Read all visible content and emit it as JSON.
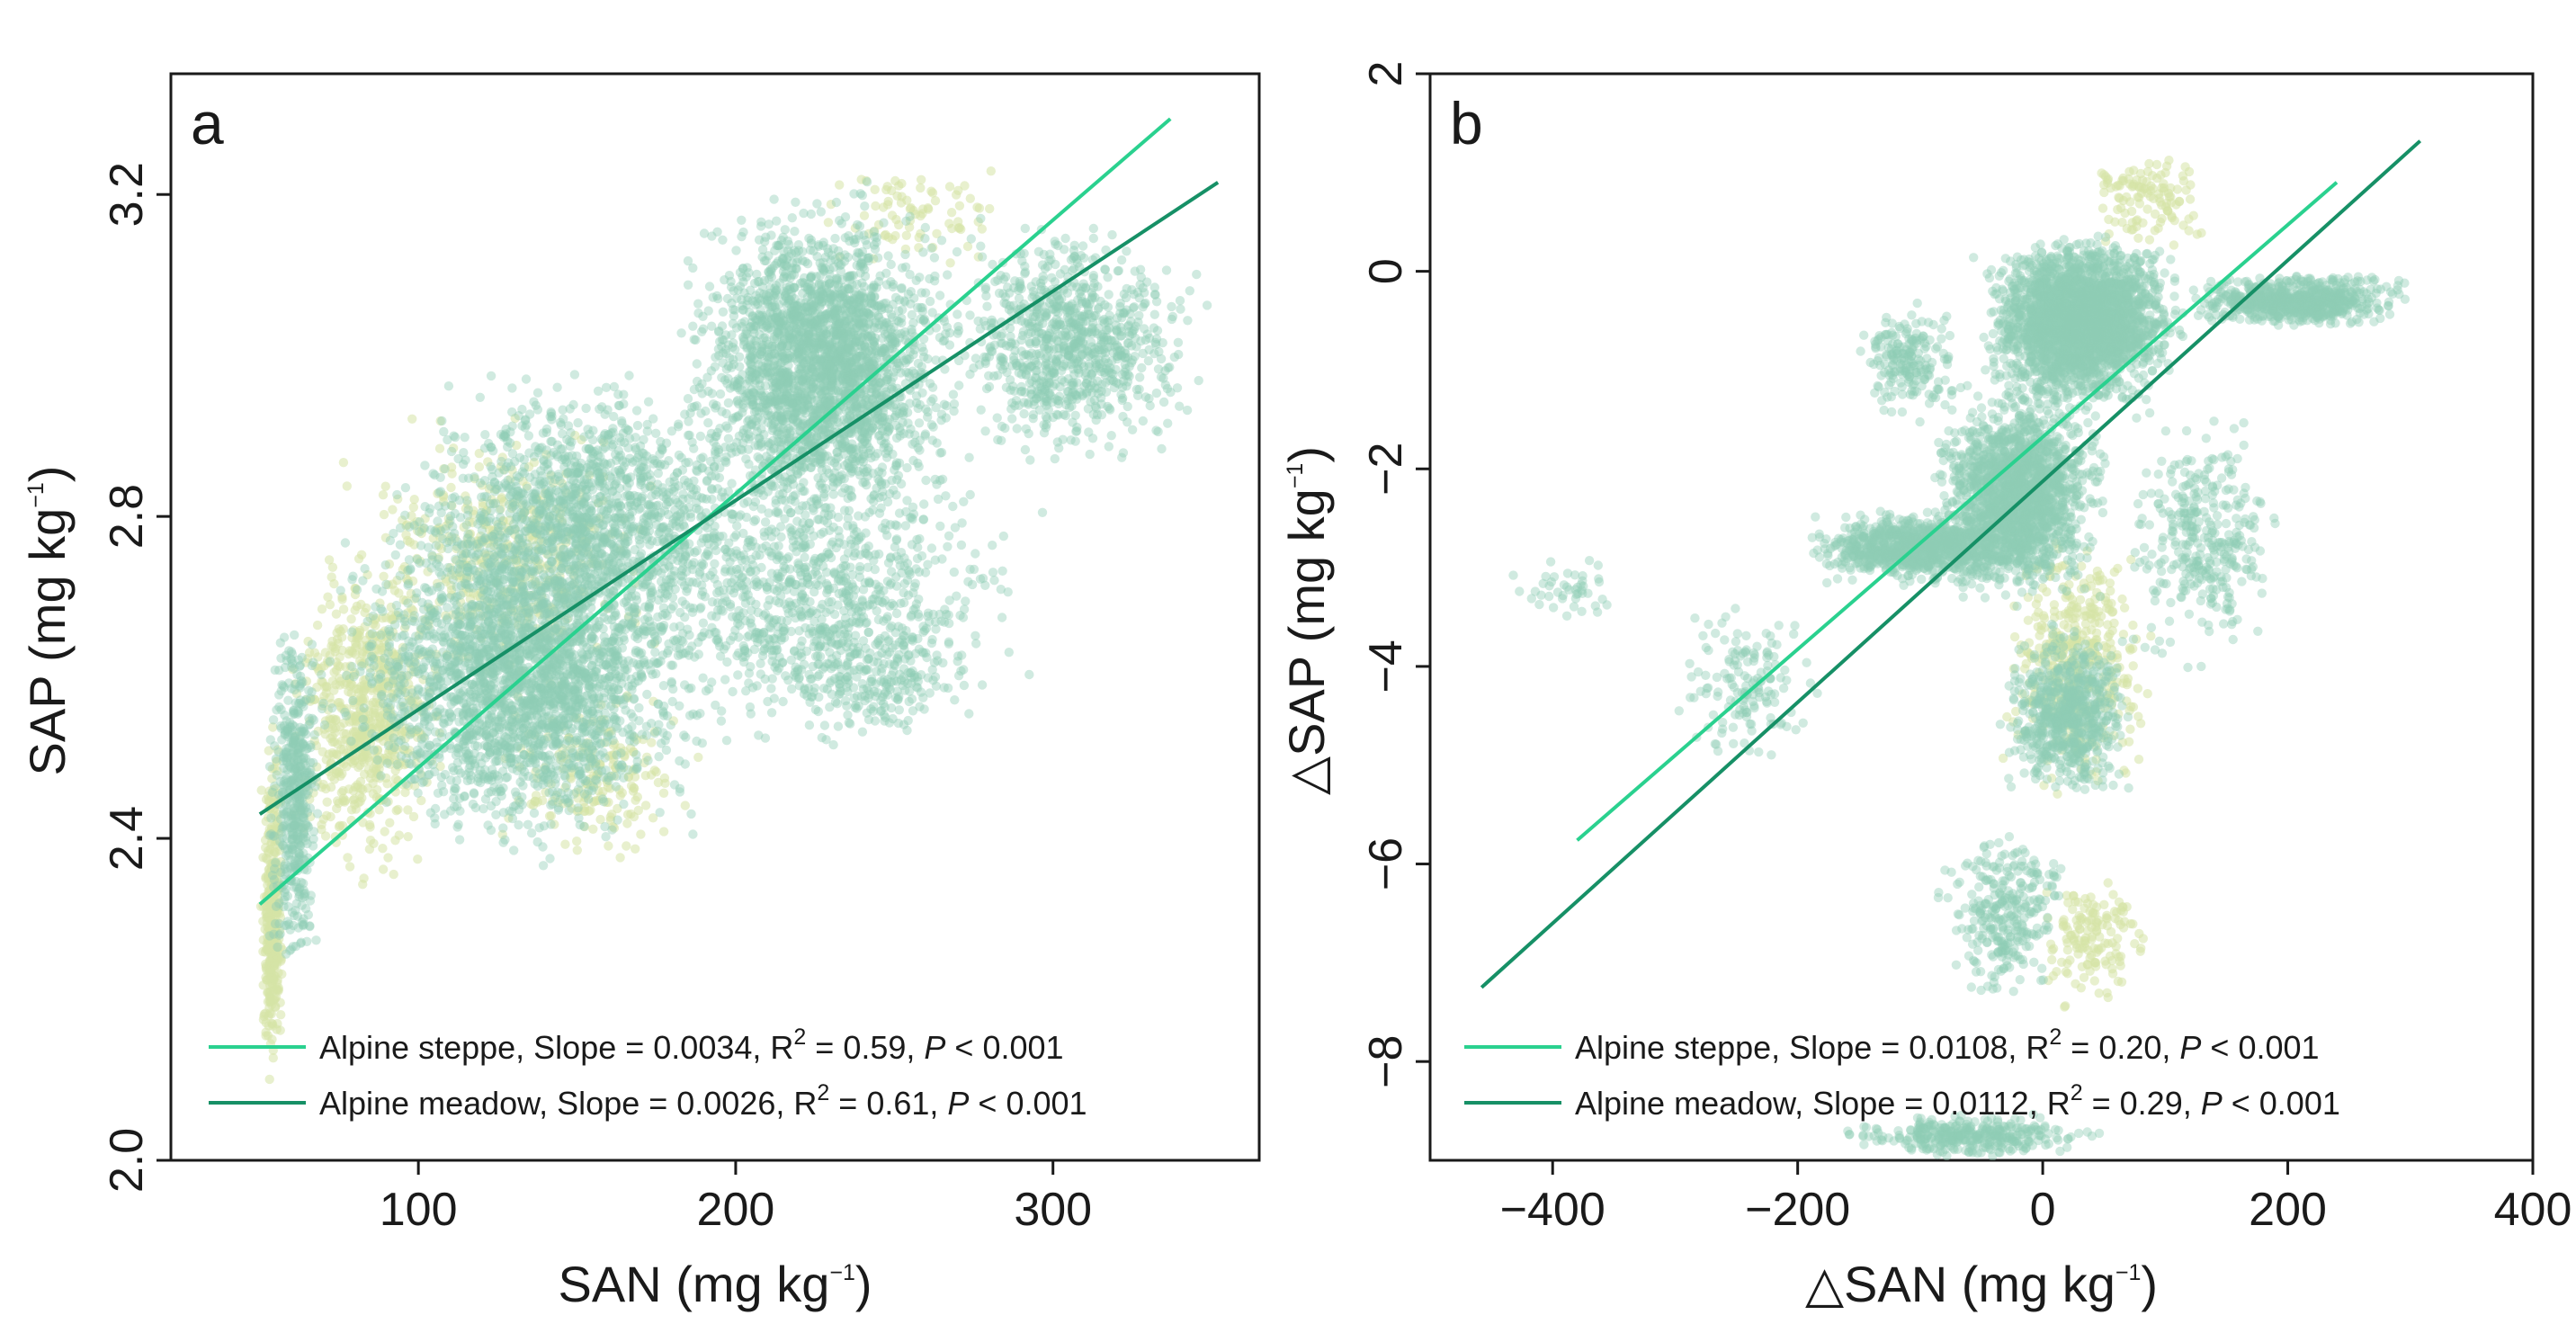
{
  "chart_data": [
    {
      "type": "scatter",
      "panel_label": "a",
      "xlabel": "SAN (mg kg",
      "xlabel_sup": "−1",
      "xlabel_close": ")",
      "ylabel": "SAP (mg kg",
      "ylabel_sup": "−1",
      "ylabel_close": ")",
      "xlim": [
        22,
        365
      ],
      "ylim": [
        2.0,
        3.35
      ],
      "xticks": [
        100,
        200,
        300
      ],
      "xtick_labels": [
        "100",
        "200",
        "300"
      ],
      "yticks": [
        2.0,
        2.4,
        2.8,
        3.2
      ],
      "ytick_labels": [
        "2.0",
        "2.4",
        "2.8",
        "3.2"
      ],
      "grid": false,
      "legend_position": "bottom-left",
      "colors": {
        "steppe_points": "#d5e3a6",
        "meadow_points": "#8fceb5",
        "steppe_line": "#2ad18f",
        "meadow_line": "#169066"
      },
      "series": [
        {
          "name": "Alpine steppe",
          "legend": {
            "prefix": "Alpine steppe, Slope = 0.0034, R",
            "sup": "2",
            "middle": " = 0.59, ",
            "italic": "P",
            "suffix": " < 0.001"
          },
          "color": "#2ad18f",
          "line": {
            "x": [
              50,
              337
            ],
            "y": [
              2.318,
              3.294
            ]
          },
          "clusters": [
            {
              "x": [
                50,
                58
              ],
              "y": [
                2.05,
                2.55
              ],
              "n": 380
            },
            {
              "x": [
                58,
                110
              ],
              "y": [
                2.32,
                2.78
              ],
              "n": 650
            },
            {
              "x": [
                75,
                180
              ],
              "y": [
                2.55,
                2.95
              ],
              "n": 450
            },
            {
              "x": [
                120,
                190
              ],
              "y": [
                2.35,
                2.6
              ],
              "n": 200
            },
            {
              "x": [
                225,
                290
              ],
              "y": [
                3.1,
                3.25
              ],
              "n": 80
            }
          ]
        },
        {
          "name": "Alpine meadow",
          "legend": {
            "prefix": "Alpine meadow, Slope = 0.0026, R",
            "sup": "2",
            "middle": " = 0.61, ",
            "italic": "P",
            "suffix": " < 0.001"
          },
          "color": "#169066",
          "line": {
            "x": [
              50,
              352
            ],
            "y": [
              2.43,
              3.215
            ]
          },
          "clusters": [
            {
              "x": [
                52,
                70
              ],
              "y": [
                2.2,
                2.7
              ],
              "n": 500
            },
            {
              "x": [
                65,
                200
              ],
              "y": [
                2.35,
                2.85
              ],
              "n": 2600
            },
            {
              "x": [
                90,
                220
              ],
              "y": [
                2.6,
                3.0
              ],
              "n": 1400
            },
            {
              "x": [
                180,
                275
              ],
              "y": [
                2.75,
                3.22
              ],
              "n": 2600
            },
            {
              "x": [
                150,
                300
              ],
              "y": [
                2.5,
                2.9
              ],
              "n": 900
            },
            {
              "x": [
                260,
                352
              ],
              "y": [
                2.85,
                3.18
              ],
              "n": 900
            },
            {
              "x": [
                205,
                280
              ],
              "y": [
                2.5,
                2.7
              ],
              "n": 200
            }
          ]
        }
      ]
    },
    {
      "type": "scatter",
      "panel_label": "b",
      "xlabel_prefix": "△",
      "xlabel": "SAN (mg kg",
      "xlabel_sup": "−1",
      "xlabel_close": ")",
      "ylabel_prefix": "△",
      "ylabel": "SAP (mg kg",
      "ylabel_sup": "−1",
      "ylabel_close": ")",
      "xlim": [
        -500,
        400
      ],
      "ylim": [
        -9,
        2
      ],
      "xticks": [
        -400,
        -200,
        0,
        200,
        400
      ],
      "xtick_labels": [
        "−400",
        "−200",
        "0",
        "200",
        "400"
      ],
      "yticks": [
        -8,
        -6,
        -4,
        -2,
        0,
        2
      ],
      "ytick_labels": [
        "−8",
        "−6",
        "−4",
        "−2",
        "0",
        "2"
      ],
      "grid": false,
      "legend_position": "bottom-left",
      "colors": {
        "steppe_points": "#d5e3a6",
        "meadow_points": "#8fceb5",
        "steppe_line": "#2ad18f",
        "meadow_line": "#169066"
      },
      "series": [
        {
          "name": "Alpine steppe",
          "legend": {
            "prefix": "Alpine steppe, Slope = 0.0108, R",
            "sup": "2",
            "middle": " = 0.20, ",
            "italic": "P",
            "suffix": " < 0.001"
          },
          "color": "#2ad18f",
          "line": {
            "x": [
              -380,
              240
            ],
            "y": [
              -5.76,
              0.9
            ]
          },
          "clusters": [
            {
              "x": [
                30,
                140
              ],
              "y": [
                0.2,
                1.3
              ],
              "n": 120
            },
            {
              "x": [
                -40,
                100
              ],
              "y": [
                -5.5,
                -2.5
              ],
              "n": 420
            },
            {
              "x": [
                -20,
                100
              ],
              "y": [
                -7.5,
                -6.0
              ],
              "n": 150
            }
          ]
        },
        {
          "name": "Alpine meadow",
          "legend": {
            "prefix": "Alpine meadow, Slope = 0.0112, R",
            "sup": "2",
            "middle": " = 0.29, ",
            "italic": "P",
            "suffix": " < 0.001"
          },
          "color": "#169066",
          "line": {
            "x": [
              -458,
              308
            ],
            "y": [
              -7.25,
              1.32
            ]
          },
          "clusters": [
            {
              "x": [
                -60,
                120
              ],
              "y": [
                -1.5,
                0.5
              ],
              "n": 2600
            },
            {
              "x": [
                -200,
                0
              ],
              "y": [
                -3.2,
                -2.4
              ],
              "n": 1000
            },
            {
              "x": [
                -100,
                60
              ],
              "y": [
                -3.5,
                -1.0
              ],
              "n": 1800
            },
            {
              "x": [
                100,
                310
              ],
              "y": [
                -0.6,
                0.0
              ],
              "n": 700
            },
            {
              "x": [
                -40,
                80
              ],
              "y": [
                -5.5,
                -3.5
              ],
              "n": 700
            },
            {
              "x": [
                -90,
                30
              ],
              "y": [
                -7.5,
                -5.5
              ],
              "n": 300
            },
            {
              "x": [
                -180,
                60
              ],
              "y": [
                -9.0,
                -8.5
              ],
              "n": 350
            },
            {
              "x": [
                -440,
                -340
              ],
              "y": [
                -3.6,
                -2.8
              ],
              "n": 45
            },
            {
              "x": [
                -320,
                -170
              ],
              "y": [
                -5.2,
                -3.2
              ],
              "n": 150
            },
            {
              "x": [
                60,
                200
              ],
              "y": [
                -4.2,
                -1.2
              ],
              "n": 350
            },
            {
              "x": [
                -160,
                -60
              ],
              "y": [
                -1.6,
                -0.2
              ],
              "n": 200
            }
          ]
        }
      ]
    }
  ]
}
